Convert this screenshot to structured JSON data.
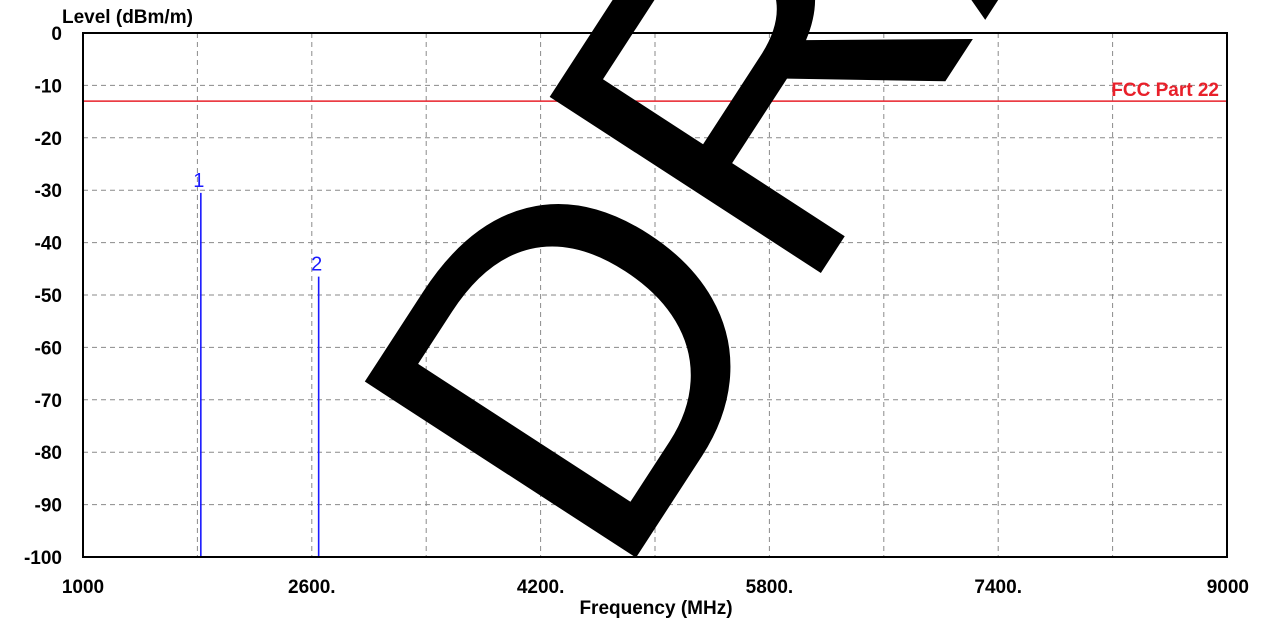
{
  "chart_data": {
    "type": "stem",
    "ylabel": "Level (dBm/m)",
    "xlabel": "Frequency (MHz)",
    "xlim": [
      1000,
      9000
    ],
    "ylim": [
      -100,
      0
    ],
    "x_ticks": [
      1000,
      2600,
      4200,
      5800,
      7400,
      9000
    ],
    "x_tick_labels": [
      "1000",
      "2600.",
      "4200.",
      "5800.",
      "7400.",
      "9000"
    ],
    "x_grid_step": 800,
    "y_ticks": [
      0,
      -10,
      -20,
      -30,
      -40,
      -50,
      -60,
      -70,
      -80,
      -90,
      -100
    ],
    "y_tick_labels": [
      "0",
      "-10",
      "-20",
      "-30",
      "-40",
      "-50",
      "-60",
      "-70",
      "-80",
      "-90",
      "-100"
    ],
    "grid": true,
    "limit_line": {
      "label": "FCC Part 22",
      "level": -13,
      "color": "#e8202a"
    },
    "markers": [
      {
        "label": "1",
        "frequency": 1824,
        "level": -30.5
      },
      {
        "label": "2",
        "frequency": 2648,
        "level": -46.5
      }
    ],
    "marker_color": "#1a1aff",
    "watermark": "DRAFT"
  }
}
